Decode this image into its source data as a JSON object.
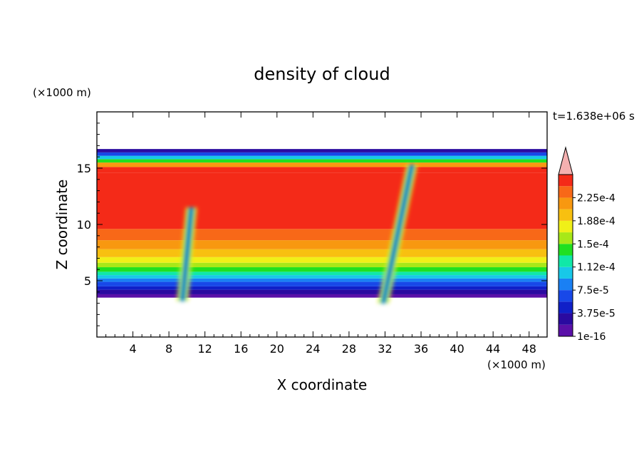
{
  "chart_data": {
    "type": "heatmap",
    "title": "density of cloud",
    "xlabel": "X coordinate",
    "ylabel": "Z coordinate",
    "x_unit": "(×1000 m)",
    "y_unit": "(×1000 m)",
    "time_label": "t=1.638e+06 s",
    "xlim": [
      0,
      50
    ],
    "ylim": [
      0,
      20
    ],
    "x_ticks": [
      4,
      8,
      12,
      16,
      20,
      24,
      28,
      32,
      36,
      40,
      44,
      48
    ],
    "y_ticks": [
      5,
      10,
      15
    ],
    "colorbar": {
      "levels": [
        {
          "value": 1e-16,
          "color": "#5a10a8"
        },
        {
          "value": 1.875e-05,
          "color": "#2a0aa0"
        },
        {
          "value": 3.75e-05,
          "color": "#1020c8"
        },
        {
          "value": 5.625e-05,
          "color": "#1848e8"
        },
        {
          "value": 7.5e-05,
          "color": "#1a80f4"
        },
        {
          "value": 9.375e-05,
          "color": "#18c8e8"
        },
        {
          "value": 0.0001125,
          "color": "#10e8a8"
        },
        {
          "value": 0.00013125,
          "color": "#20e020"
        },
        {
          "value": 0.00015,
          "color": "#a8e818"
        },
        {
          "value": 0.00016875,
          "color": "#f0f018"
        },
        {
          "value": 0.0001875,
          "color": "#f8c010"
        },
        {
          "value": 0.00020625,
          "color": "#f89810"
        },
        {
          "value": 0.000225,
          "color": "#f86818"
        },
        {
          "value": 0.00024375,
          "color": "#f42a18"
        }
      ],
      "tick_labels": [
        "1e-16",
        "3.75e-5",
        "7.5e-5",
        "1.12e-4",
        "1.5e-4",
        "1.88e-4",
        "2.25e-4"
      ],
      "overflow_color": "#f4b0b0"
    },
    "profile": [
      {
        "z": 3.5,
        "level": 0
      },
      {
        "z": 3.8,
        "level": 1
      },
      {
        "z": 4.2,
        "level": 2
      },
      {
        "z": 4.5,
        "level": 3
      },
      {
        "z": 4.9,
        "level": 4
      },
      {
        "z": 5.2,
        "level": 5
      },
      {
        "z": 5.5,
        "level": 6
      },
      {
        "z": 5.8,
        "level": 7
      },
      {
        "z": 6.2,
        "level": 8
      },
      {
        "z": 6.6,
        "level": 9
      },
      {
        "z": 7.1,
        "level": 10
      },
      {
        "z": 7.8,
        "level": 11
      },
      {
        "z": 8.6,
        "level": 12
      },
      {
        "z": 9.6,
        "level": 13
      },
      {
        "z": 14.6,
        "level": 13
      },
      {
        "z": 15.1,
        "level": 11
      },
      {
        "z": 15.5,
        "level": 7
      },
      {
        "z": 15.8,
        "level": 5
      },
      {
        "z": 16.1,
        "level": 3
      },
      {
        "z": 16.4,
        "level": 1
      },
      {
        "z": 16.7,
        "level": 0
      }
    ],
    "plumes": [
      {
        "x_bottom": 9.5,
        "x_top": 10.5,
        "z_bottom": 3.2,
        "z_top": 11.5
      },
      {
        "x_bottom": 31.8,
        "x_top": 35.0,
        "z_bottom": 3.0,
        "z_top": 15.3
      }
    ]
  }
}
